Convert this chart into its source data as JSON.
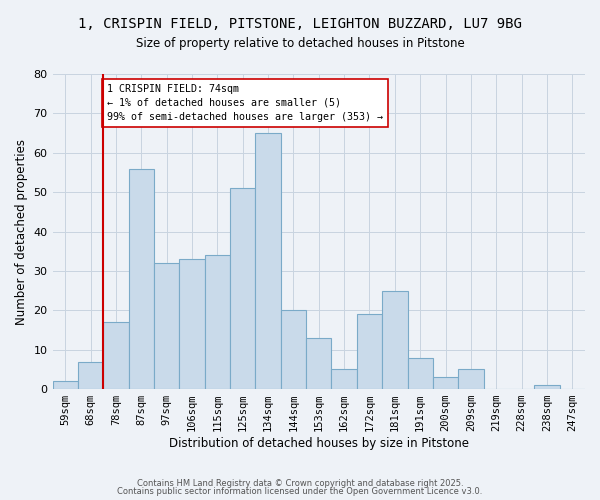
{
  "title": "1, CRISPIN FIELD, PITSTONE, LEIGHTON BUZZARD, LU7 9BG",
  "subtitle": "Size of property relative to detached houses in Pitstone",
  "xlabel": "Distribution of detached houses by size in Pitstone",
  "ylabel": "Number of detached properties",
  "bar_labels": [
    "59sqm",
    "68sqm",
    "78sqm",
    "87sqm",
    "97sqm",
    "106sqm",
    "115sqm",
    "125sqm",
    "134sqm",
    "144sqm",
    "153sqm",
    "162sqm",
    "172sqm",
    "181sqm",
    "191sqm",
    "200sqm",
    "209sqm",
    "219sqm",
    "228sqm",
    "238sqm",
    "247sqm"
  ],
  "bar_values": [
    2,
    7,
    17,
    56,
    32,
    33,
    34,
    51,
    65,
    20,
    13,
    5,
    19,
    25,
    8,
    3,
    5,
    0,
    0,
    1,
    0
  ],
  "bar_color": "#c9daea",
  "bar_edge_color": "#7aaac8",
  "marker_label": "1 CRISPIN FIELD: 74sqm",
  "annotation_line1": "← 1% of detached houses are smaller (5)",
  "annotation_line2": "99% of semi-detached houses are larger (353) →",
  "vline_color": "#cc0000",
  "ylim": [
    0,
    80
  ],
  "yticks": [
    0,
    10,
    20,
    30,
    40,
    50,
    60,
    70,
    80
  ],
  "footer1": "Contains HM Land Registry data © Crown copyright and database right 2025.",
  "footer2": "Contains public sector information licensed under the Open Government Licence v3.0.",
  "bg_color": "#eef2f7",
  "plot_bg_color": "#eef2f7",
  "grid_color": "#c8d4e0"
}
